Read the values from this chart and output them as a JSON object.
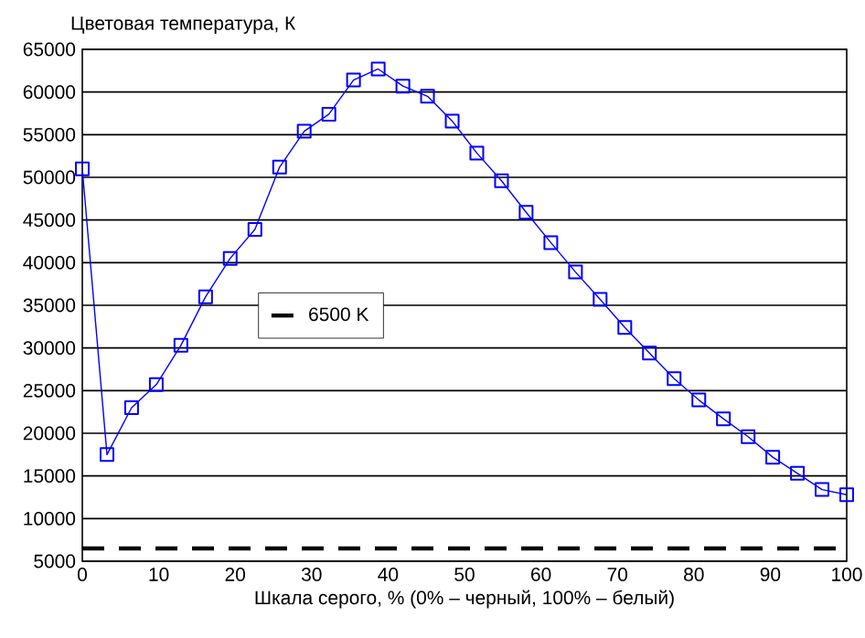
{
  "chart_data": {
    "type": "line",
    "xlabel": "Шкала серого, % (0% – черный, 100% – белый)",
    "ylabel": "Цветовая температура, К",
    "x": [
      0,
      3.23,
      6.45,
      9.68,
      12.9,
      16.13,
      19.35,
      22.58,
      25.81,
      29.03,
      32.26,
      35.48,
      38.71,
      41.94,
      45.16,
      48.39,
      51.61,
      54.84,
      58.06,
      61.29,
      64.52,
      67.74,
      70.97,
      74.19,
      77.42,
      80.65,
      83.87,
      87.1,
      90.32,
      93.55,
      96.77,
      100
    ],
    "series": [
      {
        "color": "#0000ff",
        "values": [
          51000,
          17500,
          23000,
          25700,
          30300,
          36000,
          40500,
          43900,
          51200,
          55400,
          57400,
          61400,
          62700,
          60700,
          59500,
          56600,
          52850,
          49600,
          45900,
          42350,
          38900,
          35700,
          32400,
          29400,
          26400,
          23900,
          21700,
          19600,
          17200,
          15300,
          13400,
          12800
        ]
      }
    ],
    "xlim": [
      0,
      100
    ],
    "xticks": [
      0,
      10,
      20,
      30,
      40,
      50,
      60,
      70,
      80,
      90,
      100
    ],
    "ylim": [
      5000,
      65000
    ],
    "yticks": [
      5000,
      10000,
      15000,
      20000,
      25000,
      30000,
      35000,
      40000,
      45000,
      50000,
      55000,
      60000,
      65000
    ],
    "ref_lines": [
      {
        "axis": "y",
        "value": 6500,
        "label": "6500 K",
        "color": "#000000",
        "line_style": "dashed"
      }
    ],
    "grid": "y",
    "legend": "left",
    "marker": "square",
    "line_style": "solid"
  }
}
